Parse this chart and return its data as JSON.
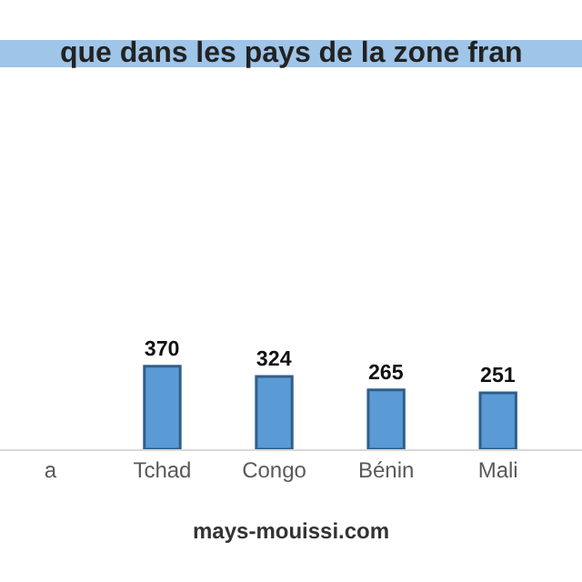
{
  "chart_data": {
    "type": "bar",
    "title": "que dans les pays de la zone fran",
    "categories": [
      "a",
      "Tchad",
      "Congo",
      "Bénin",
      "Mali"
    ],
    "values": [
      null,
      370,
      324,
      265,
      251
    ],
    "color": "#5b9bd5",
    "data_labels": true,
    "legend": false,
    "annotations": [
      "mays-mouissi.com"
    ]
  }
}
